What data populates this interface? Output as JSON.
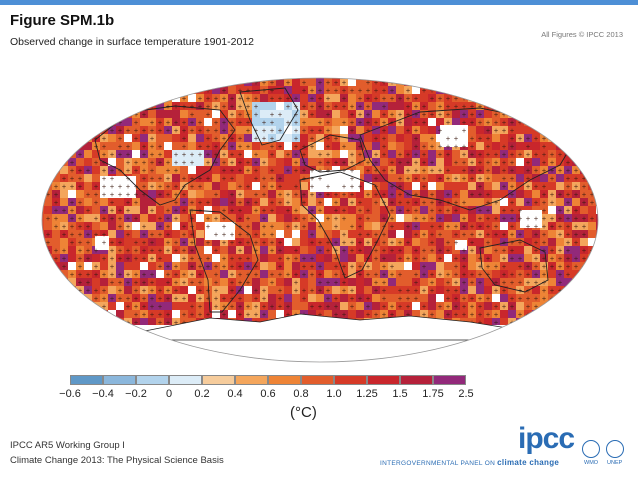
{
  "header": {
    "title": "Figure SPM.1b",
    "subtitle": "Observed change in surface temperature 1901-2012",
    "copyright": "All Figures © IPCC 2013"
  },
  "legend": {
    "unit": "(°C)",
    "ticks": [
      "−0.6",
      "−0.4",
      "−0.2",
      "0",
      "0.2",
      "0.4",
      "0.6",
      "0.8",
      "1.0",
      "1.25",
      "1.5",
      "1.75",
      "2.5"
    ],
    "colors": [
      "#5f98c7",
      "#8bb7dc",
      "#b2d3ec",
      "#dcecf7",
      "#f6cc9c",
      "#f4a65c",
      "#ee8436",
      "#e25d2c",
      "#d63a27",
      "#c9262c",
      "#b5213a",
      "#92297a",
      "#6b2b8e"
    ]
  },
  "map": {
    "projection": "Robinson",
    "ocean_color": "#e04c2a",
    "land_outline_color": "#222222",
    "stippling": "+ marks where trend is significant",
    "no_data_color": "#ffffff"
  },
  "footer": {
    "line1": "IPCC AR5 Working Group I",
    "line2": "Climate Change 2013: The Physical Science Basis",
    "logo": "ipcc",
    "panel_prefix": "INTERGOVERNMENTAL PANEL ON ",
    "panel_suffix": "climate change",
    "wmo": "WMO",
    "unep": "UNEP"
  }
}
